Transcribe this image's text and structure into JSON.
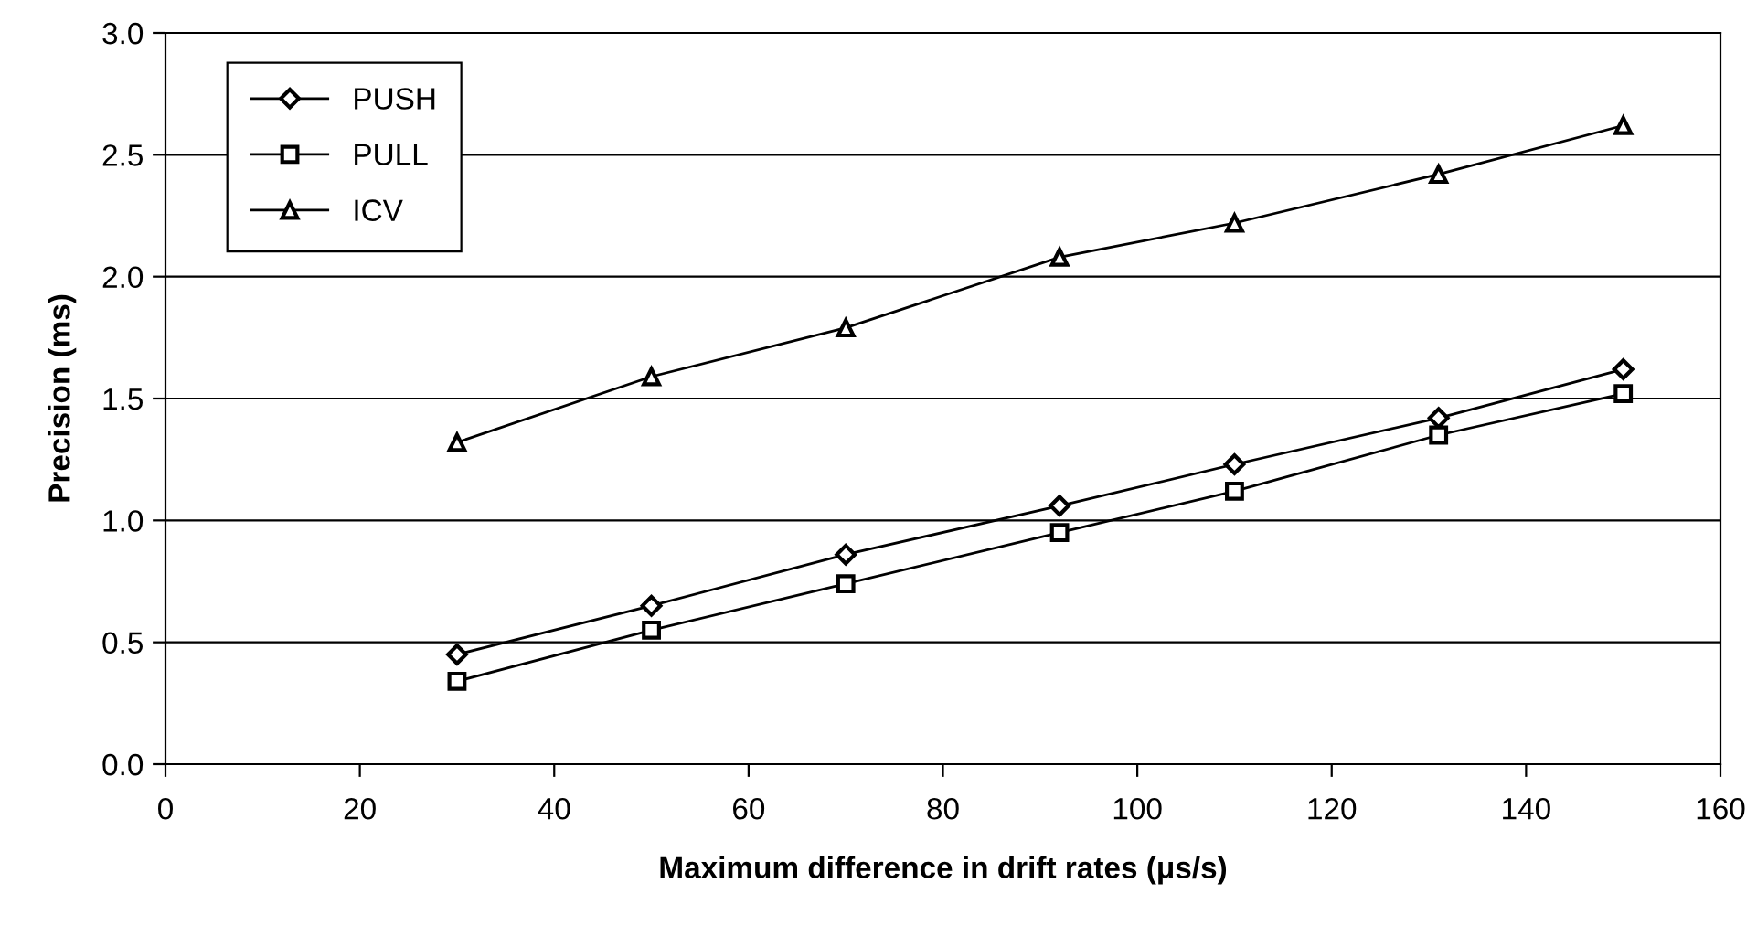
{
  "chart_data": {
    "type": "line",
    "xlabel": "Maximum difference in drift rates (μs/s)",
    "ylabel": "Precision (ms)",
    "x": [
      30,
      50,
      70,
      92,
      110,
      131,
      150
    ],
    "series": [
      {
        "name": "PUSH",
        "color": "#000000",
        "marker": "diamond",
        "values": [
          0.45,
          0.65,
          0.86,
          1.06,
          1.23,
          1.42,
          1.62
        ]
      },
      {
        "name": "PULL",
        "color": "#000000",
        "marker": "square",
        "values": [
          0.34,
          0.55,
          0.74,
          0.95,
          1.12,
          1.35,
          1.52
        ]
      },
      {
        "name": "ICV",
        "color": "#000000",
        "marker": "triangle",
        "values": [
          1.32,
          1.59,
          1.79,
          2.08,
          2.22,
          2.42,
          2.62
        ]
      }
    ],
    "xlim": [
      0,
      160
    ],
    "xticks": [
      0,
      20,
      40,
      60,
      80,
      100,
      120,
      140,
      160
    ],
    "ylim": [
      0,
      3.0
    ],
    "yticks": [
      {
        "value": 0,
        "label": "0.0"
      },
      0.5,
      {
        "value": 1,
        "label": "1.0"
      },
      1.5,
      {
        "value": 2,
        "label": "2.0"
      },
      2.5,
      {
        "value": 3,
        "label": "3.0"
      }
    ],
    "grid": "y",
    "legend": "top left",
    "line_style": "solid"
  }
}
